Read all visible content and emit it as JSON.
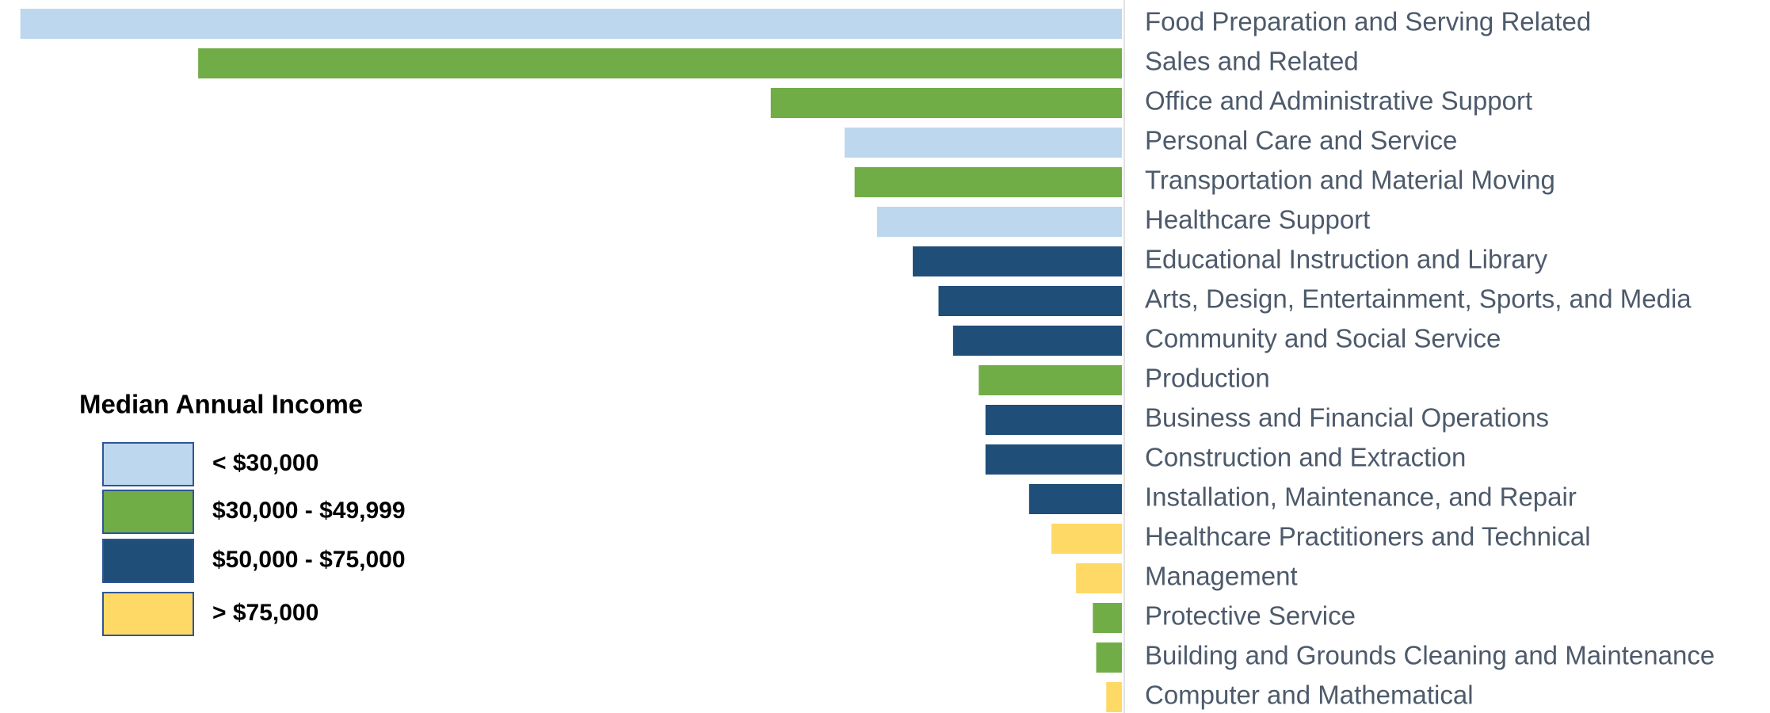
{
  "chart_data": {
    "type": "barh",
    "categories": [
      "Food Preparation and Serving Related",
      "Sales and Related",
      "Office and Administrative Support",
      "Personal Care and Service",
      "Transportation and Material Moving",
      "Healthcare Support",
      "Educational Instruction and Library",
      "Arts, Design, Entertainment, Sports, and Media",
      "Community and Social Service",
      "Production",
      "Business and Financial Operations",
      "Construction and Extraction",
      "Installation, Maintenance, and Repair",
      "Healthcare Practitioners and Technical",
      "Management",
      "Protective Service",
      "Building and Grounds Cleaning and Maintenance",
      "Computer and Mathematical"
    ],
    "values": [
      985,
      826,
      314,
      248,
      239,
      219,
      187,
      164,
      151,
      128,
      122,
      122,
      83,
      63,
      41,
      26,
      23,
      14
    ],
    "colors": [
      "#bdd7ee",
      "#70ad47",
      "#70ad47",
      "#bdd7ee",
      "#70ad47",
      "#bdd7ee",
      "#1f4e79",
      "#1f4e79",
      "#1f4e79",
      "#70ad47",
      "#1f4e79",
      "#1f4e79",
      "#1f4e79",
      "#ffd966",
      "#ffd966",
      "#70ad47",
      "#70ad47",
      "#ffd966"
    ],
    "xlim": [
      0,
      994
    ],
    "legend": {
      "title": "Median Annual Income",
      "items": [
        {
          "name": "< $30,000",
          "color": "#bdd7ee"
        },
        {
          "name": "$30,000 - $49,999",
          "color": "#70ad47"
        },
        {
          "name": "$50,000 - $75,000",
          "color": "#1f4e79"
        },
        {
          "name": "> $75,000",
          "color": "#ffd966"
        }
      ]
    }
  }
}
